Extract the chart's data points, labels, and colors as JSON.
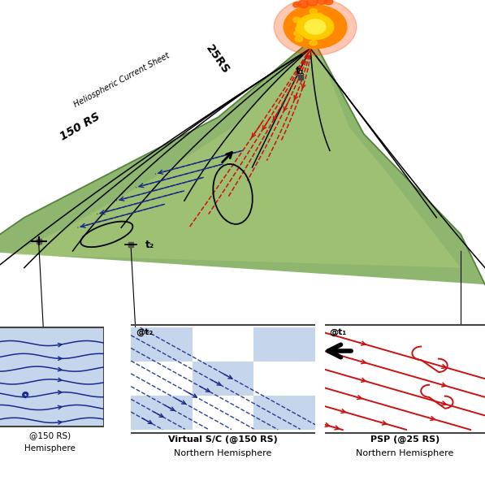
{
  "bg_color": "#ffffff",
  "green_light": "#a8c878",
  "green_mid": "#7aaa55",
  "green_dark": "#4a7a30",
  "blue_color": "#1a2a8a",
  "red_color": "#cc1111",
  "panel_blue_bg": "#c5d5eb",
  "panel_white_bg": "#ffffff",
  "panel_border": "#444444",
  "sun_corona": "#ff6600",
  "sun_orange": "#ff9900",
  "sun_yellow": "#ffcc00",
  "sun_bright": "#ffee88",
  "label_150rs": "150 RS",
  "label_25rs": "25RS",
  "label_hcs": "Heliospheric Current Sheet",
  "label_t1": "t₁",
  "label_t2": "t₂",
  "panel2_title": "@t₂",
  "panel3_title": "@t₁",
  "panel1_label1": "@150 RS)",
  "panel1_label2": "Hemisphere",
  "panel2_label1": "Virtual S/C (@150 RS)",
  "panel2_label2": "Northern Hemisphere",
  "panel3_label1": "PSP (@25 RS)",
  "panel3_label2": "Northern Hemisphere"
}
